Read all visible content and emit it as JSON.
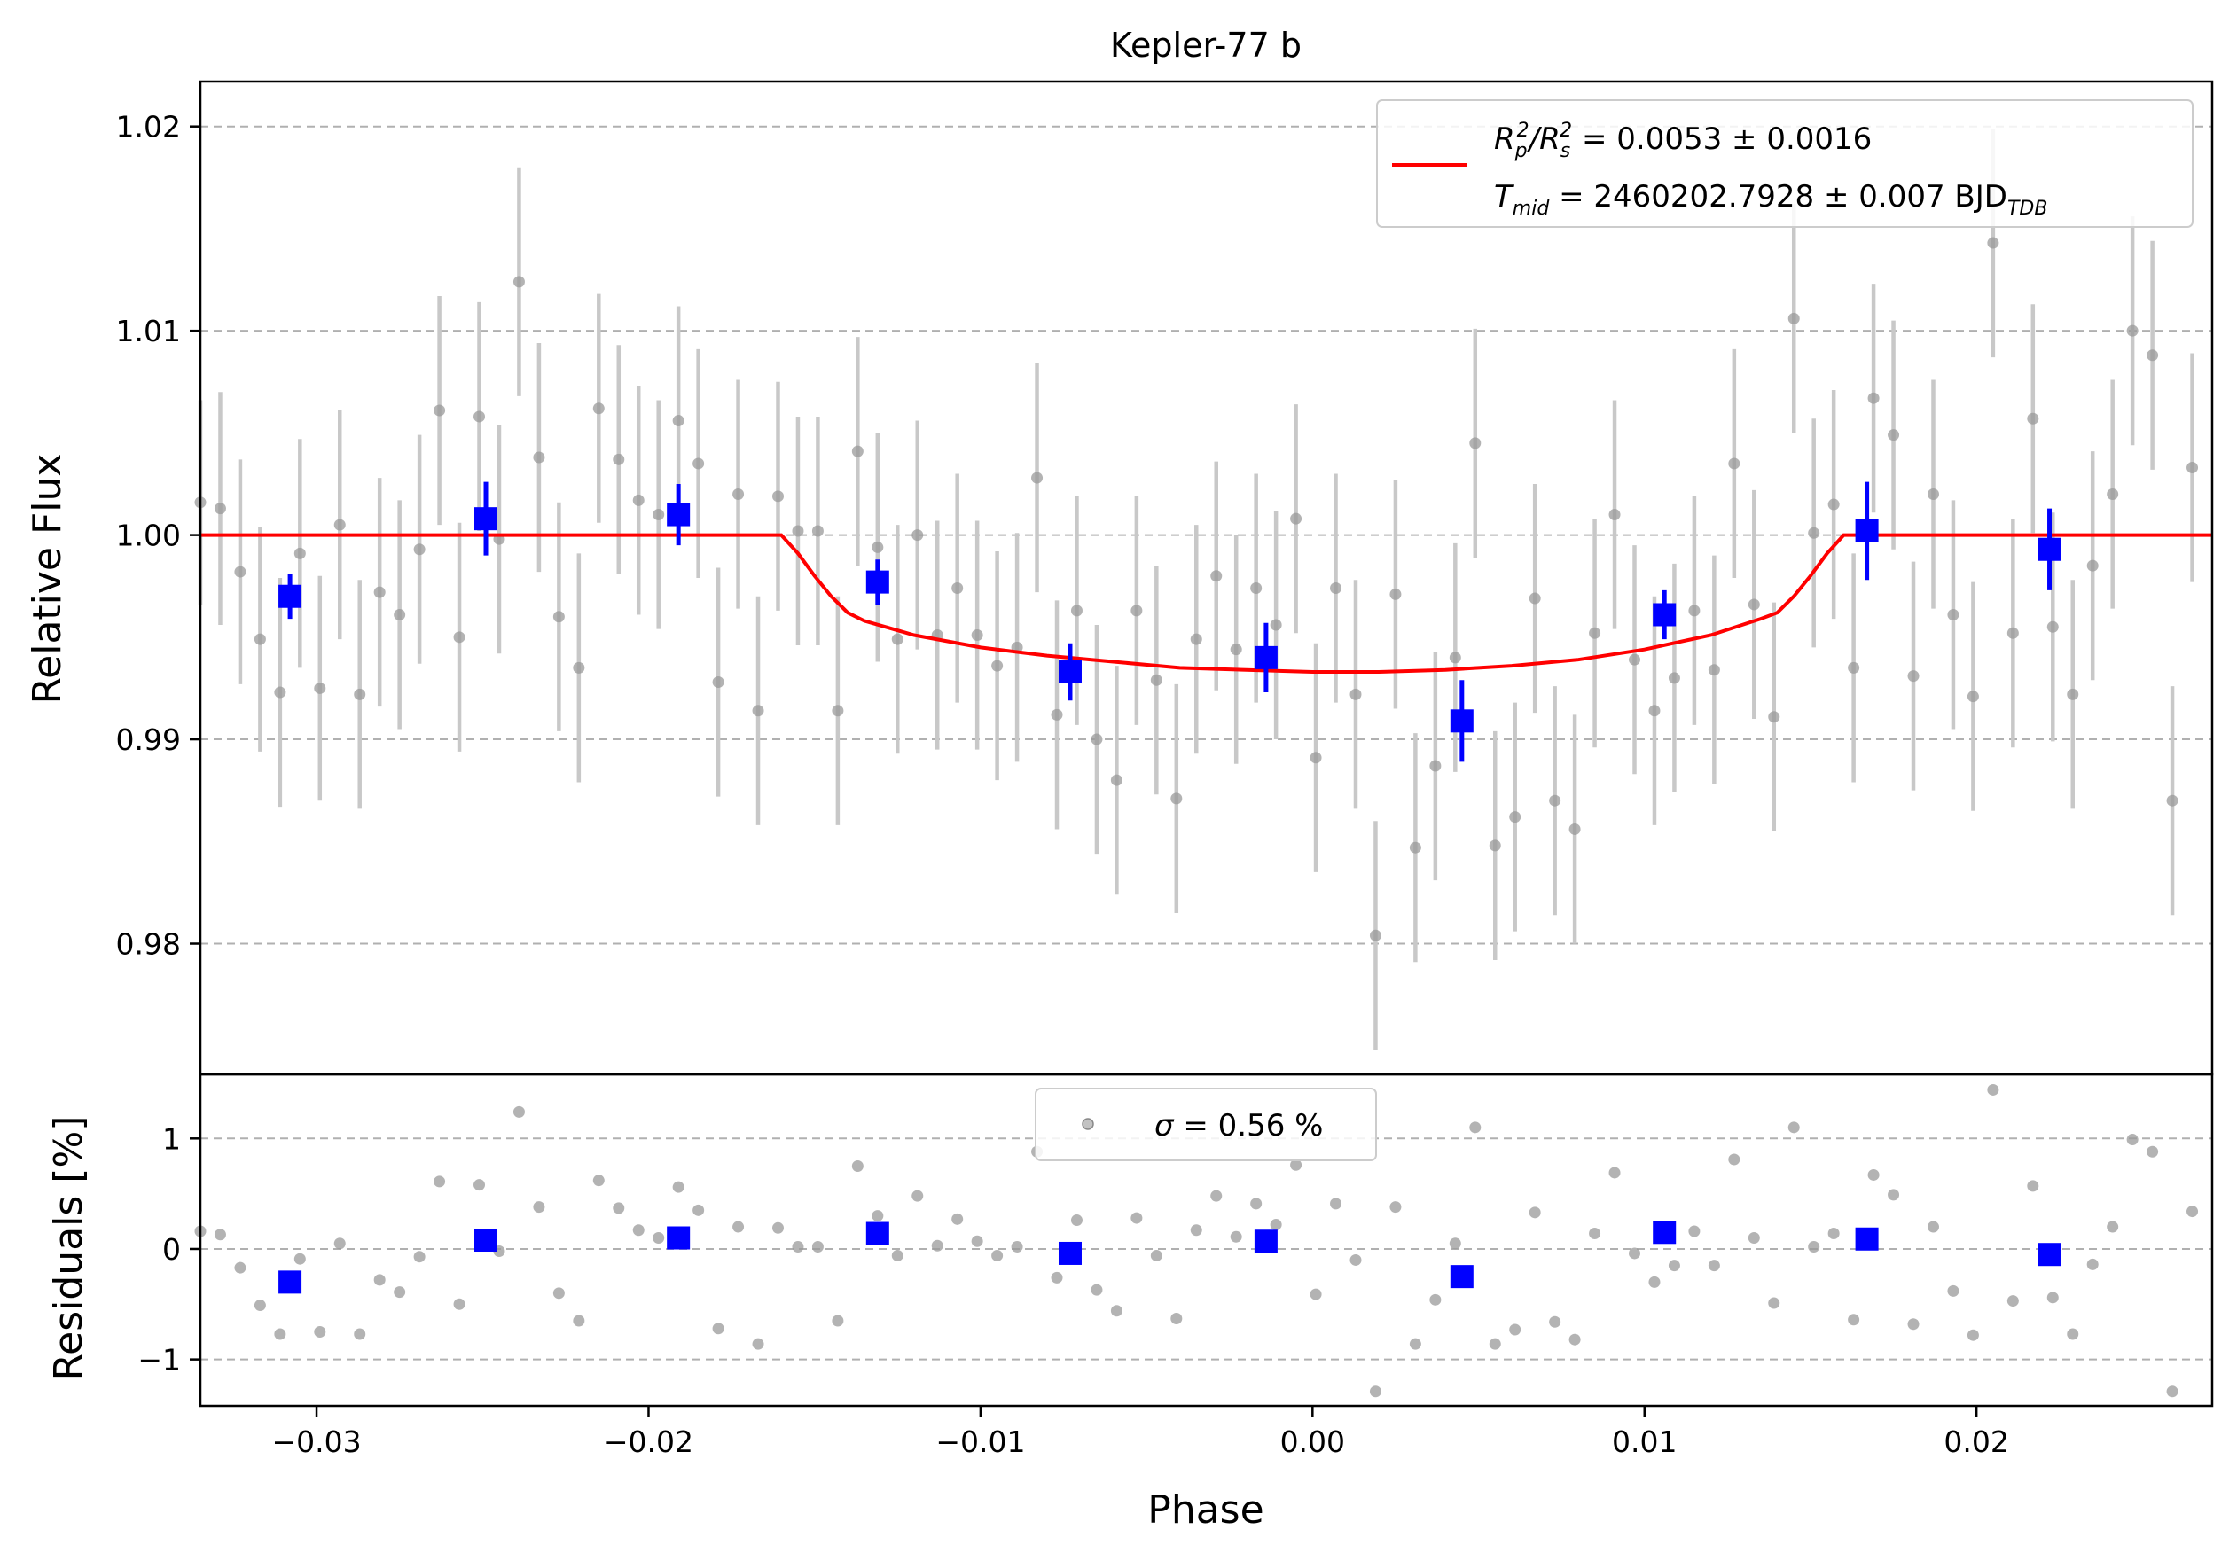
{
  "chart_data": {
    "type": "scatter",
    "title": "Kepler-77 b",
    "xlabel": "Phase",
    "xlim": [
      -0.0335,
      0.0271
    ],
    "x_ticks": [
      {
        "value": -0.03,
        "label": "−0.03"
      },
      {
        "value": -0.02,
        "label": "−0.02"
      },
      {
        "value": -0.01,
        "label": "−0.01"
      },
      {
        "value": 0.0,
        "label": "0.00"
      },
      {
        "value": 0.01,
        "label": "0.01"
      },
      {
        "value": 0.02,
        "label": "0.02"
      }
    ],
    "top_panel": {
      "ylabel": "Relative Flux",
      "ylim": [
        0.9736,
        1.0222
      ],
      "y_ticks": [
        {
          "value": 0.98,
          "label": "0.98"
        },
        {
          "value": 0.99,
          "label": "0.99"
        },
        {
          "value": 1.0,
          "label": "1.00"
        },
        {
          "value": 1.01,
          "label": "1.01"
        },
        {
          "value": 1.02,
          "label": "1.02"
        }
      ],
      "grid": "y-dashed",
      "legend": {
        "placement": "top-right",
        "line1": {
          "a": "R",
          "a_sub": "p",
          "a_sup": "2",
          "slash": "/",
          "b": "R",
          "b_sub": "s",
          "b_sup": "2",
          "rest": " = 0.0053 ± 0.0016"
        },
        "line2": {
          "a": "T",
          "a_sub": "mid",
          "rest": " = 2460202.7928 ± 0.007 BJD",
          "unit_sub": "TDB"
        }
      },
      "raw": [
        [
          -0.0335,
          1.0016,
          0.005
        ],
        [
          -0.0329,
          1.0013,
          0.0057
        ],
        [
          -0.0323,
          0.9982,
          0.0055
        ],
        [
          -0.0317,
          0.9949,
          0.0055
        ],
        [
          -0.0311,
          0.9923,
          0.0056
        ],
        [
          -0.0305,
          0.9991,
          0.0056
        ],
        [
          -0.0299,
          0.9925,
          0.0055
        ],
        [
          -0.0293,
          1.0005,
          0.0056
        ],
        [
          -0.0287,
          0.9922,
          0.0056
        ],
        [
          -0.0281,
          0.9972,
          0.0056
        ],
        [
          -0.0275,
          0.9961,
          0.0056
        ],
        [
          -0.0269,
          0.9993,
          0.0056
        ],
        [
          -0.0263,
          1.0061,
          0.0056
        ],
        [
          -0.0257,
          0.995,
          0.0056
        ],
        [
          -0.0251,
          1.0058,
          0.0056
        ],
        [
          -0.0245,
          0.9998,
          0.0056
        ],
        [
          -0.0239,
          1.0124,
          0.0056
        ],
        [
          -0.0233,
          1.0038,
          0.0056
        ],
        [
          -0.0227,
          0.996,
          0.0056
        ],
        [
          -0.0221,
          0.9935,
          0.0056
        ],
        [
          -0.0215,
          1.0062,
          0.0056
        ],
        [
          -0.0209,
          1.0037,
          0.0056
        ],
        [
          -0.0203,
          1.0017,
          0.0056
        ],
        [
          -0.0197,
          1.001,
          0.0056
        ],
        [
          -0.0191,
          1.0056,
          0.0056
        ],
        [
          -0.0185,
          1.0035,
          0.0056
        ],
        [
          -0.0179,
          0.9928,
          0.0056
        ],
        [
          -0.0173,
          1.002,
          0.0056
        ],
        [
          -0.0167,
          0.9914,
          0.0056
        ],
        [
          -0.0161,
          1.0019,
          0.0056
        ],
        [
          -0.0155,
          1.0002,
          0.0056
        ],
        [
          -0.0149,
          1.0002,
          0.0056
        ],
        [
          -0.0143,
          0.9914,
          0.0056
        ],
        [
          -0.0137,
          1.0041,
          0.0056
        ],
        [
          -0.0131,
          0.9994,
          0.0056
        ],
        [
          -0.0125,
          0.9949,
          0.0056
        ],
        [
          -0.0119,
          1.0,
          0.0056
        ],
        [
          -0.0113,
          0.9951,
          0.0056
        ],
        [
          -0.0107,
          0.9974,
          0.0056
        ],
        [
          -0.0101,
          0.9951,
          0.0056
        ],
        [
          -0.0095,
          0.9936,
          0.0056
        ],
        [
          -0.0089,
          0.9945,
          0.0056
        ],
        [
          -0.0083,
          1.0028,
          0.0056
        ],
        [
          -0.0077,
          0.9912,
          0.0056
        ],
        [
          -0.0071,
          0.9963,
          0.0056
        ],
        [
          -0.0065,
          0.99,
          0.0056
        ],
        [
          -0.0059,
          0.988,
          0.0056
        ],
        [
          -0.0053,
          0.9963,
          0.0056
        ],
        [
          -0.0047,
          0.9929,
          0.0056
        ],
        [
          -0.0041,
          0.9871,
          0.0056
        ],
        [
          -0.0035,
          0.9949,
          0.0056
        ],
        [
          -0.0029,
          0.998,
          0.0056
        ],
        [
          -0.0023,
          0.9944,
          0.0056
        ],
        [
          -0.0017,
          0.9974,
          0.0056
        ],
        [
          -0.0011,
          0.9956,
          0.0056
        ],
        [
          -0.0005,
          1.0008,
          0.0056
        ],
        [
          0.0001,
          0.9891,
          0.0056
        ],
        [
          0.0007,
          0.9974,
          0.0056
        ],
        [
          0.0013,
          0.9922,
          0.0056
        ],
        [
          0.0019,
          0.9804,
          0.0056
        ],
        [
          0.0025,
          0.9971,
          0.0056
        ],
        [
          0.0031,
          0.9847,
          0.0056
        ],
        [
          0.0037,
          0.9887,
          0.0056
        ],
        [
          0.0043,
          0.994,
          0.0056
        ],
        [
          0.0049,
          1.0045,
          0.0056
        ],
        [
          0.0055,
          0.9848,
          0.0056
        ],
        [
          0.0061,
          0.9862,
          0.0056
        ],
        [
          0.0067,
          0.9969,
          0.0056
        ],
        [
          0.0073,
          0.987,
          0.0056
        ],
        [
          0.0079,
          0.9856,
          0.0056
        ],
        [
          0.0085,
          0.9952,
          0.0056
        ],
        [
          0.0091,
          1.001,
          0.0056
        ],
        [
          0.0097,
          0.9939,
          0.0056
        ],
        [
          0.0103,
          0.9914,
          0.0056
        ],
        [
          0.0109,
          0.993,
          0.0056
        ],
        [
          0.0115,
          0.9963,
          0.0056
        ],
        [
          0.0121,
          0.9934,
          0.0056
        ],
        [
          0.0127,
          1.0035,
          0.0056
        ],
        [
          0.0133,
          0.9966,
          0.0056
        ],
        [
          0.0139,
          0.9911,
          0.0056
        ],
        [
          0.0145,
          1.0106,
          0.0056
        ],
        [
          0.0151,
          1.0001,
          0.0056
        ],
        [
          0.0157,
          1.0015,
          0.0056
        ],
        [
          0.0163,
          0.9935,
          0.0056
        ],
        [
          0.0169,
          1.0067,
          0.0056
        ],
        [
          0.0175,
          1.0049,
          0.0056
        ],
        [
          0.0181,
          0.9931,
          0.0056
        ],
        [
          0.0187,
          1.002,
          0.0056
        ],
        [
          0.0193,
          0.9961,
          0.0056
        ],
        [
          0.0199,
          0.9921,
          0.0056
        ],
        [
          0.0205,
          1.0143,
          0.0056
        ],
        [
          0.0211,
          0.9952,
          0.0056
        ],
        [
          0.0217,
          1.0057,
          0.0056
        ],
        [
          0.0223,
          0.9955,
          0.0056
        ],
        [
          0.0229,
          0.9922,
          0.0056
        ],
        [
          0.0235,
          0.9985,
          0.0056
        ],
        [
          0.0241,
          1.002,
          0.0056
        ],
        [
          0.0247,
          1.01,
          0.0056
        ],
        [
          0.0253,
          1.0088,
          0.0056
        ],
        [
          0.0259,
          0.987,
          0.0056
        ],
        [
          0.0265,
          1.0033,
          0.0056
        ]
      ],
      "binned": [
        [
          -0.0308,
          0.997,
          0.0011
        ],
        [
          -0.0249,
          1.0008,
          0.0018
        ],
        [
          -0.0191,
          1.001,
          0.0015
        ],
        [
          -0.0131,
          0.9977,
          0.0011
        ],
        [
          -0.0073,
          0.9933,
          0.0014
        ],
        [
          -0.0014,
          0.994,
          0.0017
        ],
        [
          0.0045,
          0.9909,
          0.002
        ],
        [
          0.0106,
          0.9961,
          0.0012
        ],
        [
          0.0167,
          1.0002,
          0.0024
        ],
        [
          0.0222,
          0.9993,
          0.002
        ]
      ],
      "model": [
        [
          -0.0335,
          1.0
        ],
        [
          -0.016,
          1.0
        ],
        [
          -0.0155,
          0.9991
        ],
        [
          -0.015,
          0.998
        ],
        [
          -0.0145,
          0.997
        ],
        [
          -0.014,
          0.9962
        ],
        [
          -0.0135,
          0.9958
        ],
        [
          -0.012,
          0.9951
        ],
        [
          -0.01,
          0.9945
        ],
        [
          -0.008,
          0.9941
        ],
        [
          -0.006,
          0.9938
        ],
        [
          -0.004,
          0.9935
        ],
        [
          -0.002,
          0.9934
        ],
        [
          0.0,
          0.9933
        ],
        [
          0.002,
          0.9933
        ],
        [
          0.004,
          0.9934
        ],
        [
          0.006,
          0.9936
        ],
        [
          0.008,
          0.9939
        ],
        [
          0.01,
          0.9944
        ],
        [
          0.012,
          0.9951
        ],
        [
          0.0135,
          0.9959
        ],
        [
          0.014,
          0.9962
        ],
        [
          0.0145,
          0.997
        ],
        [
          0.015,
          0.998
        ],
        [
          0.0155,
          0.9991
        ],
        [
          0.016,
          1.0
        ],
        [
          0.0271,
          1.0
        ]
      ]
    },
    "bottom_panel": {
      "ylabel": "Residuals [%]",
      "ylim": [
        -1.42,
        1.58
      ],
      "y_ticks": [
        {
          "value": -1,
          "label": "−1"
        },
        {
          "value": 0,
          "label": "0"
        },
        {
          "value": 1,
          "label": "1"
        }
      ],
      "grid": "y-dashed",
      "legend": {
        "placement": "top-center",
        "sigma": "σ",
        "rest": " = 0.56 %"
      },
      "raw": [
        [
          -0.0335,
          0.16
        ],
        [
          -0.0329,
          0.13
        ],
        [
          -0.0323,
          -0.17
        ],
        [
          -0.0317,
          -0.51
        ],
        [
          -0.0311,
          -0.77
        ],
        [
          -0.0305,
          -0.09
        ],
        [
          -0.0299,
          -0.75
        ],
        [
          -0.0293,
          0.05
        ],
        [
          -0.0287,
          -0.77
        ],
        [
          -0.0281,
          -0.28
        ],
        [
          -0.0275,
          -0.39
        ],
        [
          -0.0269,
          -0.07
        ],
        [
          -0.0263,
          0.61
        ],
        [
          -0.0257,
          -0.5
        ],
        [
          -0.0251,
          0.58
        ],
        [
          -0.0245,
          -0.02
        ],
        [
          -0.0239,
          1.24
        ],
        [
          -0.0233,
          0.38
        ],
        [
          -0.0227,
          -0.4
        ],
        [
          -0.0221,
          -0.65
        ],
        [
          -0.0215,
          0.62
        ],
        [
          -0.0209,
          0.37
        ],
        [
          -0.0203,
          0.17
        ],
        [
          -0.0197,
          0.1
        ],
        [
          -0.0191,
          0.56
        ],
        [
          -0.0185,
          0.35
        ],
        [
          -0.0179,
          -0.72
        ],
        [
          -0.0173,
          0.2
        ],
        [
          -0.0167,
          -0.86
        ],
        [
          -0.0161,
          0.19
        ],
        [
          -0.0155,
          0.02
        ],
        [
          -0.0149,
          0.02
        ],
        [
          -0.0143,
          -0.65
        ],
        [
          -0.0137,
          0.75
        ],
        [
          -0.0131,
          0.3
        ],
        [
          -0.0125,
          -0.06
        ],
        [
          -0.0119,
          0.48
        ],
        [
          -0.0113,
          0.03
        ],
        [
          -0.0107,
          0.27
        ],
        [
          -0.0101,
          0.07
        ],
        [
          -0.0095,
          -0.06
        ],
        [
          -0.0089,
          0.02
        ],
        [
          -0.0083,
          0.88
        ],
        [
          -0.0077,
          -0.26
        ],
        [
          -0.0071,
          0.26
        ],
        [
          -0.0065,
          -0.37
        ],
        [
          -0.0059,
          -0.56
        ],
        [
          -0.0053,
          0.28
        ],
        [
          -0.0047,
          -0.06
        ],
        [
          -0.0041,
          -0.63
        ],
        [
          -0.0035,
          0.17
        ],
        [
          -0.0029,
          0.48
        ],
        [
          -0.0023,
          0.11
        ],
        [
          -0.0017,
          0.41
        ],
        [
          -0.0011,
          0.22
        ],
        [
          -0.0005,
          0.76
        ],
        [
          0.0001,
          -0.41
        ],
        [
          0.0007,
          0.41
        ],
        [
          0.0013,
          -0.1
        ],
        [
          0.0019,
          -1.29
        ],
        [
          0.0025,
          0.38
        ],
        [
          0.0031,
          -0.86
        ],
        [
          0.0037,
          -0.46
        ],
        [
          0.0043,
          0.05
        ],
        [
          0.0049,
          1.1
        ],
        [
          0.0055,
          -0.86
        ],
        [
          0.0061,
          -0.73
        ],
        [
          0.0067,
          0.33
        ],
        [
          0.0073,
          -0.66
        ],
        [
          0.0079,
          -0.82
        ],
        [
          0.0085,
          0.14
        ],
        [
          0.0091,
          0.69
        ],
        [
          0.0097,
          -0.04
        ],
        [
          0.0103,
          -0.3
        ],
        [
          0.0109,
          -0.15
        ],
        [
          0.0115,
          0.16
        ],
        [
          0.0121,
          -0.15
        ],
        [
          0.0127,
          0.81
        ],
        [
          0.0133,
          0.1
        ],
        [
          0.0139,
          -0.49
        ],
        [
          0.0145,
          1.1
        ],
        [
          0.0151,
          0.02
        ],
        [
          0.0157,
          0.14
        ],
        [
          0.0163,
          -0.64
        ],
        [
          0.0169,
          0.67
        ],
        [
          0.0175,
          0.49
        ],
        [
          0.0181,
          -0.68
        ],
        [
          0.0187,
          0.2
        ],
        [
          0.0193,
          -0.38
        ],
        [
          0.0199,
          -0.78
        ],
        [
          0.0205,
          1.44
        ],
        [
          0.0211,
          -0.47
        ],
        [
          0.0217,
          0.57
        ],
        [
          0.0223,
          -0.44
        ],
        [
          0.0229,
          -0.77
        ],
        [
          0.0235,
          -0.14
        ],
        [
          0.0241,
          0.2
        ],
        [
          0.0247,
          0.99
        ],
        [
          0.0253,
          0.88
        ],
        [
          0.0259,
          -1.29
        ],
        [
          0.0265,
          0.34
        ]
      ],
      "binned": [
        [
          -0.0308,
          -0.3
        ],
        [
          -0.0249,
          0.08
        ],
        [
          -0.0191,
          0.1
        ],
        [
          -0.0131,
          0.14
        ],
        [
          -0.0073,
          -0.04
        ],
        [
          -0.0014,
          0.07
        ],
        [
          0.0045,
          -0.25
        ],
        [
          0.0106,
          0.15
        ],
        [
          0.0167,
          0.09
        ],
        [
          0.0222,
          -0.05
        ]
      ]
    },
    "colors": {
      "raw": "#999999",
      "raw_err": "#c8c8c8",
      "binned": "#0000ff",
      "model": "#ff0000",
      "grid": "#b0b0b0"
    }
  }
}
